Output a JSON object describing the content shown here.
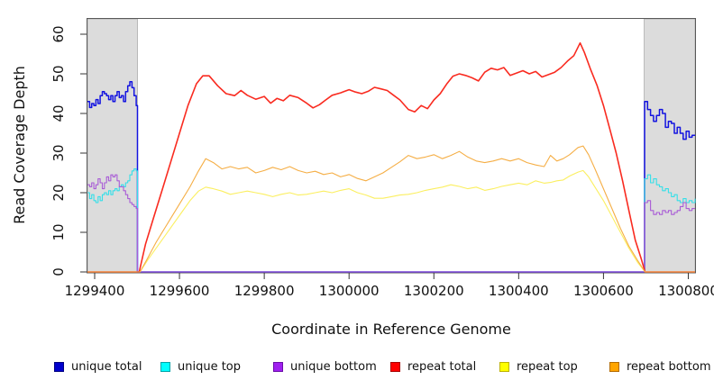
{
  "chart_data": {
    "type": "line",
    "title": "",
    "xlabel": "Coordinate in Reference Genome",
    "ylabel": "Read Coverage Depth",
    "xlim": [
      1299383,
      1300816
    ],
    "ylim": [
      0,
      60
    ],
    "x_ticks": [
      1299400,
      1299600,
      1299800,
      1300000,
      1300200,
      1300400,
      1300600,
      1300800
    ],
    "y_ticks": [
      0,
      10,
      20,
      30,
      40,
      50,
      60
    ],
    "grid": false,
    "legend_position": "bottom",
    "background": "#ffffff",
    "plot_frame_color": "#595959",
    "shaded_regions": [
      {
        "name": "left-unique-flank",
        "x0": 1299383,
        "x1": 1299501,
        "color": "#DCDCDC",
        "border": "#A8A8A8"
      },
      {
        "name": "right-unique-flank",
        "x0": 1300696,
        "x1": 1300816,
        "color": "#DCDCDC",
        "border": "#A8A8A8"
      }
    ],
    "series": [
      {
        "name": "unique total",
        "swatch": "#0000CD",
        "swatch_border": "#000080",
        "line": "#1414E0",
        "width": 1.5,
        "step": true,
        "x": [
          1299383,
          1299388,
          1299393,
          1299398,
          1299403,
          1299408,
          1299413,
          1299418,
          1299423,
          1299428,
          1299433,
          1299438,
          1299443,
          1299448,
          1299453,
          1299458,
          1299463,
          1299468,
          1299473,
          1299478,
          1299483,
          1299488,
          1299493,
          1299498,
          1299501,
          1300697,
          1300704,
          1300711,
          1300718,
          1300725,
          1300732,
          1300739,
          1300746,
          1300753,
          1300760,
          1300767,
          1300774,
          1300781,
          1300788,
          1300795,
          1300802,
          1300809,
          1300816
        ],
        "y": [
          43,
          41.5,
          42.5,
          42,
          43.5,
          42.5,
          44.5,
          45.5,
          45,
          44.5,
          43.5,
          44.5,
          43,
          44.5,
          45.5,
          44,
          44.5,
          43,
          45.5,
          47,
          48,
          46.5,
          44.5,
          42,
          0,
          43,
          41,
          39.5,
          38,
          39.5,
          41,
          40,
          36.5,
          38,
          37.5,
          35,
          36.5,
          35,
          33.5,
          35.5,
          34,
          34.5,
          34.5
        ]
      },
      {
        "name": "unique top",
        "swatch": "#00FFFF",
        "swatch_border": "#00A3A8",
        "line": "#35DFE8",
        "width": 1.1,
        "step": true,
        "x": [
          1299383,
          1299388,
          1299393,
          1299398,
          1299403,
          1299408,
          1299413,
          1299418,
          1299423,
          1299428,
          1299433,
          1299438,
          1299443,
          1299448,
          1299453,
          1299458,
          1299463,
          1299468,
          1299473,
          1299478,
          1299483,
          1299488,
          1299493,
          1299498,
          1299501,
          1300697,
          1300704,
          1300711,
          1300718,
          1300725,
          1300732,
          1300739,
          1300746,
          1300753,
          1300760,
          1300767,
          1300774,
          1300781,
          1300788,
          1300795,
          1300802,
          1300809,
          1300816
        ],
        "y": [
          20,
          18.5,
          19.5,
          18,
          17.5,
          19,
          18,
          19.5,
          20,
          19.5,
          20.5,
          19.5,
          20.5,
          21,
          20.5,
          21.5,
          22,
          21.5,
          22.5,
          23,
          24.5,
          25.5,
          26,
          25.5,
          0,
          23.5,
          24.5,
          22.5,
          23.5,
          22,
          21.5,
          20.5,
          21,
          20,
          19,
          19.5,
          18,
          17.5,
          18.5,
          17.5,
          18,
          17.5,
          18.5
        ]
      },
      {
        "name": "unique bottom",
        "swatch": "#A020F0",
        "swatch_border": "#6A0DA8",
        "line": "#A95CD6",
        "width": 1.1,
        "step": true,
        "x": [
          1299383,
          1299388,
          1299393,
          1299398,
          1299403,
          1299408,
          1299413,
          1299418,
          1299423,
          1299428,
          1299433,
          1299438,
          1299443,
          1299448,
          1299453,
          1299458,
          1299463,
          1299468,
          1299473,
          1299478,
          1299483,
          1299488,
          1299493,
          1299498,
          1299501,
          1300697,
          1300704,
          1300711,
          1300718,
          1300725,
          1300732,
          1300739,
          1300746,
          1300753,
          1300760,
          1300767,
          1300774,
          1300781,
          1300788,
          1300795,
          1300802,
          1300809,
          1300816
        ],
        "y": [
          22,
          21.5,
          22.5,
          21,
          22,
          23.5,
          22.5,
          21,
          22.5,
          24,
          23,
          24.5,
          24,
          24.5,
          23,
          21.5,
          21.5,
          20.5,
          19.5,
          18.5,
          17.5,
          17,
          16.5,
          16,
          0,
          17.5,
          18,
          15.5,
          14.5,
          15,
          14.5,
          15.5,
          15,
          15.5,
          14.5,
          15,
          15.5,
          16.5,
          17.5,
          16,
          15.5,
          16,
          16
        ]
      },
      {
        "name": "repeat total",
        "swatch": "#FF0000",
        "swatch_border": "#A80000",
        "line": "#F92B20",
        "width": 1.6,
        "step": false,
        "x": [
          1299383,
          1299505,
          1299520,
          1299540,
          1299560,
          1299580,
          1299600,
          1299620,
          1299640,
          1299655,
          1299670,
          1299690,
          1299710,
          1299730,
          1299745,
          1299760,
          1299780,
          1299800,
          1299815,
          1299830,
          1299845,
          1299860,
          1299880,
          1299900,
          1299915,
          1299930,
          1299945,
          1299960,
          1299980,
          1300000,
          1300015,
          1300030,
          1300045,
          1300060,
          1300075,
          1300090,
          1300105,
          1300120,
          1300140,
          1300155,
          1300170,
          1300185,
          1300200,
          1300215,
          1300230,
          1300245,
          1300260,
          1300275,
          1300290,
          1300305,
          1300320,
          1300335,
          1300350,
          1300365,
          1300380,
          1300395,
          1300410,
          1300425,
          1300440,
          1300455,
          1300470,
          1300485,
          1300500,
          1300515,
          1300530,
          1300545,
          1300555,
          1300570,
          1300585,
          1300600,
          1300615,
          1300630,
          1300645,
          1300660,
          1300675,
          1300690,
          1300698,
          1300816
        ],
        "y": [
          0,
          0,
          7,
          14,
          21,
          28,
          35,
          42,
          47.5,
          49.5,
          49.5,
          47,
          45,
          44.5,
          45.8,
          44.6,
          43.6,
          44.3,
          42.6,
          43.8,
          43.2,
          44.6,
          44,
          42.6,
          41.4,
          42.2,
          43.4,
          44.6,
          45.2,
          46,
          45.4,
          45,
          45.6,
          46.6,
          46.2,
          45.8,
          44.6,
          43.4,
          41,
          40.4,
          42,
          41.2,
          43.4,
          45,
          47.4,
          49.4,
          50,
          49.6,
          49,
          48.2,
          50.4,
          51.4,
          51,
          51.6,
          49.6,
          50.2,
          50.8,
          50,
          50.6,
          49.2,
          49.8,
          50.4,
          51.6,
          53.2,
          54.6,
          57.8,
          55.4,
          51,
          47,
          42,
          36,
          30,
          23,
          15.5,
          8,
          3,
          0,
          0
        ]
      },
      {
        "name": "repeat top",
        "swatch": "#FFFF00",
        "swatch_border": "#BDB200",
        "line": "#FBEF60",
        "width": 1.1,
        "step": false,
        "x": [
          1299383,
          1299507,
          1299525,
          1299545,
          1299565,
          1299585,
          1299605,
          1299625,
          1299645,
          1299662,
          1299680,
          1299700,
          1299720,
          1299740,
          1299760,
          1299780,
          1299800,
          1299820,
          1299840,
          1299860,
          1299880,
          1299900,
          1299920,
          1299940,
          1299960,
          1299980,
          1300000,
          1300020,
          1300040,
          1300060,
          1300080,
          1300100,
          1300120,
          1300140,
          1300160,
          1300180,
          1300200,
          1300220,
          1300240,
          1300260,
          1300280,
          1300300,
          1300320,
          1300340,
          1300360,
          1300380,
          1300400,
          1300420,
          1300440,
          1300460,
          1300475,
          1300490,
          1300505,
          1300520,
          1300540,
          1300552,
          1300565,
          1300580,
          1300600,
          1300620,
          1300640,
          1300660,
          1300680,
          1300698,
          1300816
        ],
        "y": [
          0,
          0,
          3,
          6,
          9,
          12,
          15,
          18,
          20.4,
          21.4,
          21,
          20.4,
          19.6,
          20,
          20.4,
          20,
          19.6,
          19,
          19.6,
          20,
          19.4,
          19.6,
          20,
          20.4,
          20,
          20.6,
          21,
          20,
          19.4,
          18.6,
          18.6,
          19,
          19.4,
          19.6,
          20,
          20.6,
          21,
          21.4,
          22,
          21.6,
          21,
          21.4,
          20.6,
          21,
          21.6,
          22,
          22.4,
          22,
          23,
          22.4,
          22.6,
          23,
          23.2,
          24.2,
          25.2,
          25.6,
          24,
          21.4,
          18,
          14,
          10,
          6,
          2.5,
          0,
          0
        ]
      },
      {
        "name": "repeat bottom",
        "swatch": "#FFA500",
        "swatch_border": "#B36B00",
        "line": "#F5AE45",
        "width": 1.1,
        "step": false,
        "x": [
          1299383,
          1299507,
          1299525,
          1299545,
          1299565,
          1299585,
          1299605,
          1299625,
          1299645,
          1299662,
          1299680,
          1299700,
          1299720,
          1299740,
          1299760,
          1299780,
          1299800,
          1299820,
          1299840,
          1299860,
          1299880,
          1299900,
          1299920,
          1299940,
          1299960,
          1299980,
          1300000,
          1300020,
          1300040,
          1300060,
          1300080,
          1300100,
          1300120,
          1300140,
          1300160,
          1300180,
          1300200,
          1300220,
          1300240,
          1300260,
          1300280,
          1300300,
          1300320,
          1300340,
          1300360,
          1300380,
          1300400,
          1300420,
          1300440,
          1300460,
          1300475,
          1300490,
          1300505,
          1300520,
          1300540,
          1300552,
          1300565,
          1300580,
          1300600,
          1300620,
          1300640,
          1300660,
          1300680,
          1300698,
          1300816
        ],
        "y": [
          0,
          0,
          3.5,
          7.5,
          11,
          14.5,
          18,
          21.5,
          25.5,
          28.6,
          27.6,
          26,
          26.6,
          26,
          26.4,
          25,
          25.6,
          26.4,
          25.8,
          26.6,
          25.6,
          25,
          25.4,
          24.6,
          25,
          24,
          24.6,
          23.6,
          23,
          24,
          25,
          26.4,
          27.8,
          29.4,
          28.6,
          29,
          29.6,
          28.6,
          29.4,
          30.4,
          29,
          28,
          27.6,
          28,
          28.6,
          28,
          28.6,
          27.6,
          27,
          26.6,
          29.4,
          28,
          28.6,
          29.6,
          31.4,
          31.8,
          29.6,
          26,
          21,
          16,
          11,
          6.5,
          3,
          0,
          0
        ]
      }
    ]
  },
  "legend": {
    "items": [
      {
        "label": "unique total"
      },
      {
        "label": "unique top"
      },
      {
        "label": "unique bottom"
      },
      {
        "label": "repeat total"
      },
      {
        "label": "repeat top"
      },
      {
        "label": "repeat bottom"
      }
    ]
  }
}
